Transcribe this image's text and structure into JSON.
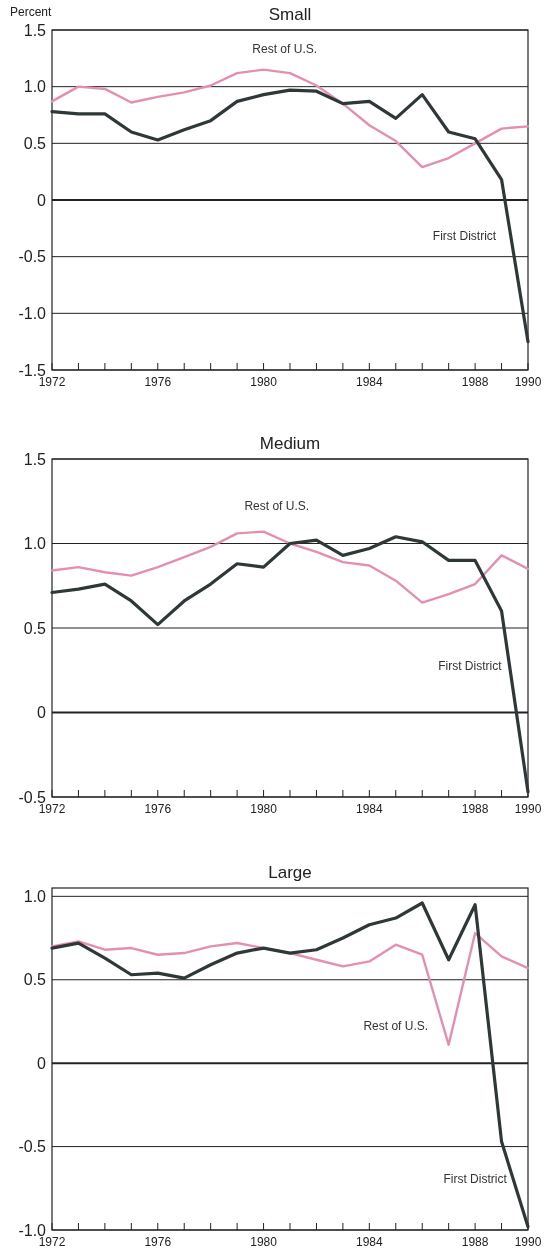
{
  "chart_data": [
    {
      "type": "line",
      "title": "Small",
      "ylabel": "Percent",
      "x": [
        1972,
        1973,
        1974,
        1975,
        1976,
        1977,
        1978,
        1979,
        1980,
        1981,
        1982,
        1983,
        1984,
        1985,
        1986,
        1987,
        1988,
        1989,
        1990
      ],
      "xlim": [
        1972,
        1990
      ],
      "xticks": [
        1972,
        {
          "value": 1973,
          "label": null
        },
        {
          "value": 1974,
          "label": null
        },
        {
          "value": 1975,
          "label": null
        },
        1976,
        {
          "value": 1977,
          "label": null
        },
        {
          "value": 1978,
          "label": null
        },
        {
          "value": 1979,
          "label": null
        },
        1980,
        {
          "value": 1981,
          "label": null
        },
        {
          "value": 1982,
          "label": null
        },
        {
          "value": 1983,
          "label": null
        },
        1984,
        {
          "value": 1985,
          "label": null
        },
        {
          "value": 1986,
          "label": null
        },
        {
          "value": 1987,
          "label": null
        },
        1988,
        {
          "value": 1989,
          "label": null
        },
        1990
      ],
      "ylim": [
        -1.5,
        1.5
      ],
      "yticks": [
        {
          "value": -1.5,
          "label": "-1.5"
        },
        {
          "value": -1,
          "label": "-1.0"
        },
        {
          "value": -0.5,
          "label": "-0.5"
        },
        {
          "value": 0,
          "label": "0"
        },
        {
          "value": 0.5,
          "label": "0.5"
        },
        {
          "value": 1,
          "label": "1.0"
        },
        {
          "value": 1.5,
          "label": "1.5"
        }
      ],
      "grid": "y",
      "legend": false,
      "series": [
        {
          "name": "Rest of U.S.",
          "color": "#e48fb2",
          "values": [
            0.87,
            1.0,
            0.98,
            0.86,
            0.91,
            0.95,
            1.01,
            1.12,
            1.15,
            1.12,
            1.01,
            0.85,
            0.66,
            0.52,
            0.29,
            0.37,
            0.5,
            0.63,
            0.65
          ]
        },
        {
          "name": "First District",
          "color": "#2e3838",
          "values": [
            0.78,
            0.76,
            0.76,
            0.6,
            0.53,
            0.62,
            0.7,
            0.87,
            0.93,
            0.97,
            0.96,
            0.85,
            0.87,
            0.72,
            0.93,
            0.6,
            0.54,
            0.18,
            -1.25
          ]
        }
      ]
    },
    {
      "type": "line",
      "title": "Medium",
      "x": [
        1972,
        1973,
        1974,
        1975,
        1976,
        1977,
        1978,
        1979,
        1980,
        1981,
        1982,
        1983,
        1984,
        1985,
        1986,
        1987,
        1988,
        1989,
        1990
      ],
      "xlim": [
        1972,
        1990
      ],
      "xticks": [
        1972,
        {
          "value": 1973,
          "label": null
        },
        {
          "value": 1974,
          "label": null
        },
        {
          "value": 1975,
          "label": null
        },
        1976,
        {
          "value": 1977,
          "label": null
        },
        {
          "value": 1978,
          "label": null
        },
        {
          "value": 1979,
          "label": null
        },
        1980,
        {
          "value": 1981,
          "label": null
        },
        {
          "value": 1982,
          "label": null
        },
        {
          "value": 1983,
          "label": null
        },
        1984,
        {
          "value": 1985,
          "label": null
        },
        {
          "value": 1986,
          "label": null
        },
        {
          "value": 1987,
          "label": null
        },
        1988,
        {
          "value": 1989,
          "label": null
        },
        1990
      ],
      "ylim": [
        -0.5,
        1.5
      ],
      "yticks": [
        {
          "value": -0.5,
          "label": "-0.5"
        },
        {
          "value": 0,
          "label": "0"
        },
        {
          "value": 0.5,
          "label": "0.5"
        },
        {
          "value": 1,
          "label": "1.0"
        },
        {
          "value": 1.5,
          "label": "1.5"
        }
      ],
      "grid": "y",
      "legend": false,
      "series": [
        {
          "name": "Rest of U.S.",
          "color": "#e48fb2",
          "values": [
            0.84,
            0.86,
            0.83,
            0.81,
            0.86,
            0.92,
            0.98,
            1.06,
            1.07,
            1.0,
            0.95,
            0.89,
            0.87,
            0.78,
            0.65,
            0.7,
            0.76,
            0.93,
            0.85
          ]
        },
        {
          "name": "First District",
          "color": "#2e3838",
          "values": [
            0.71,
            0.73,
            0.76,
            0.66,
            0.52,
            0.66,
            0.76,
            0.88,
            0.86,
            1.0,
            1.02,
            0.93,
            0.97,
            1.04,
            1.01,
            0.9,
            0.9,
            0.6,
            -0.47
          ]
        }
      ]
    },
    {
      "type": "line",
      "title": "Large",
      "x": [
        1972,
        1973,
        1974,
        1975,
        1976,
        1977,
        1978,
        1979,
        1980,
        1981,
        1982,
        1983,
        1984,
        1985,
        1986,
        1987,
        1988,
        1989,
        1990
      ],
      "xlim": [
        1972,
        1990
      ],
      "xticks": [
        1972,
        {
          "value": 1973,
          "label": null
        },
        {
          "value": 1974,
          "label": null
        },
        {
          "value": 1975,
          "label": null
        },
        1976,
        {
          "value": 1977,
          "label": null
        },
        {
          "value": 1978,
          "label": null
        },
        {
          "value": 1979,
          "label": null
        },
        1980,
        {
          "value": 1981,
          "label": null
        },
        {
          "value": 1982,
          "label": null
        },
        {
          "value": 1983,
          "label": null
        },
        1984,
        {
          "value": 1985,
          "label": null
        },
        {
          "value": 1986,
          "label": null
        },
        {
          "value": 1987,
          "label": null
        },
        1988,
        {
          "value": 1989,
          "label": null
        },
        1990
      ],
      "ylim": [
        -1,
        1.05
      ],
      "yticks": [
        {
          "value": -1,
          "label": "-1.0"
        },
        {
          "value": -0.5,
          "label": "-0.5"
        },
        {
          "value": 0,
          "label": "0"
        },
        {
          "value": 0.5,
          "label": "0.5"
        },
        {
          "value": 1,
          "label": "1.0"
        }
      ],
      "grid": "y",
      "legend": false,
      "series": [
        {
          "name": "Rest of U.S.",
          "color": "#e48fb2",
          "values": [
            0.7,
            0.73,
            0.68,
            0.69,
            0.65,
            0.66,
            0.7,
            0.72,
            0.69,
            0.66,
            0.62,
            0.58,
            0.61,
            0.71,
            0.65,
            0.11,
            0.78,
            0.64,
            0.57
          ]
        },
        {
          "name": "First District",
          "color": "#2e3838",
          "values": [
            0.69,
            0.72,
            0.63,
            0.53,
            0.54,
            0.51,
            0.59,
            0.66,
            0.69,
            0.66,
            0.68,
            0.75,
            0.83,
            0.87,
            0.96,
            0.62,
            0.95,
            -0.47,
            -0.98
          ]
        }
      ]
    }
  ]
}
